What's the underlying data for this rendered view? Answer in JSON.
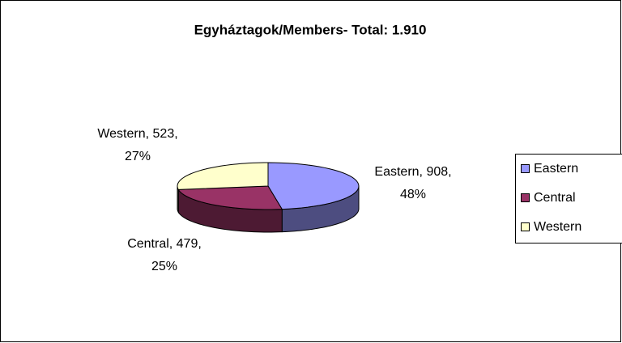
{
  "chart_data": {
    "type": "pie",
    "title": "Egyháztagok/Members- Total: 1.910",
    "categories": [
      "Eastern",
      "Central",
      "Western"
    ],
    "values": [
      908,
      479,
      523
    ],
    "value_labels": [
      [
        "Eastern, 908,",
        "48%"
      ],
      [
        "Central, 479,",
        "25%"
      ],
      [
        "Western, 523,",
        "27%"
      ]
    ],
    "colors": [
      "#9999ff",
      "#993366",
      "#ffffcc"
    ],
    "legend": "right"
  }
}
